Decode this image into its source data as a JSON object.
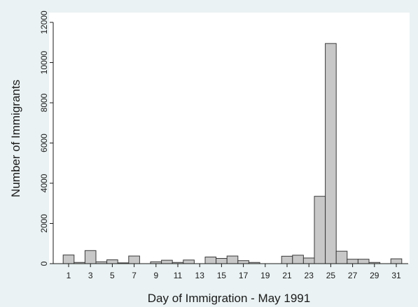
{
  "chart_data": {
    "type": "bar",
    "title": "",
    "xlabel": "Day of Immigration - May 1991",
    "ylabel": "Number of Immigrants",
    "x_ticks": [
      1,
      3,
      5,
      7,
      9,
      11,
      13,
      15,
      17,
      19,
      21,
      23,
      25,
      27,
      29,
      31
    ],
    "y_ticks": [
      0,
      2000,
      4000,
      6000,
      8000,
      10000,
      12000
    ],
    "ylim": [
      0,
      12000
    ],
    "xlim": [
      0,
      32
    ],
    "grid": false,
    "bar_color": "#c8c8c8",
    "bar_edge_color": "#3a3a3a",
    "categories": [
      1,
      2,
      3,
      4,
      5,
      6,
      7,
      8,
      9,
      10,
      11,
      12,
      13,
      14,
      15,
      16,
      17,
      18,
      19,
      20,
      21,
      22,
      23,
      24,
      25,
      26,
      27,
      28,
      29,
      30,
      31
    ],
    "values": [
      430,
      60,
      650,
      90,
      190,
      40,
      380,
      0,
      90,
      170,
      60,
      180,
      0,
      330,
      260,
      380,
      150,
      60,
      0,
      0,
      370,
      420,
      280,
      3350,
      10950,
      620,
      220,
      220,
      60,
      0,
      240
    ]
  },
  "colors": {
    "page_background": "#eaf2f3",
    "plot_background": "#ffffff"
  }
}
